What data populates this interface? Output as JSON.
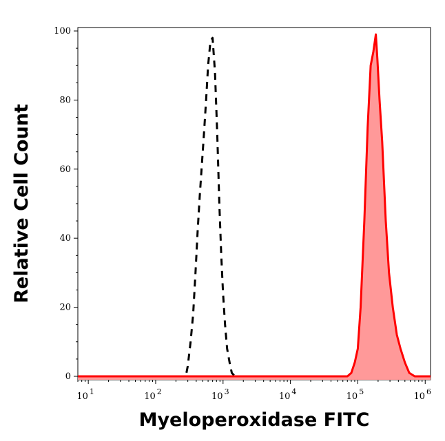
{
  "chart_data": {
    "type": "area",
    "title": "",
    "xlabel": "Myeloperoxidase FITC",
    "ylabel": "Relative Cell Count",
    "x_scale": "log",
    "xlim": [
      7,
      1200000
    ],
    "ylim": [
      -1,
      101
    ],
    "x_ticks": [
      {
        "value": 10,
        "base": "10",
        "exp": "1"
      },
      {
        "value": 100,
        "base": "10",
        "exp": "2"
      },
      {
        "value": 1000,
        "base": "10",
        "exp": "3"
      },
      {
        "value": 10000,
        "base": "10",
        "exp": "4"
      },
      {
        "value": 100000,
        "base": "10",
        "exp": "5"
      },
      {
        "value": 1000000,
        "base": "10",
        "exp": "6"
      }
    ],
    "y_ticks": [
      "0",
      "20",
      "40",
      "60",
      "80",
      "100"
    ],
    "y_minor_step": 5,
    "grid": false,
    "legend": "none",
    "series": [
      {
        "style": "dashed",
        "color": "#000000",
        "fill": "none",
        "points": [
          [
            7,
            0
          ],
          [
            280,
            0
          ],
          [
            300,
            3
          ],
          [
            330,
            10
          ],
          [
            360,
            18
          ],
          [
            390,
            30
          ],
          [
            420,
            42
          ],
          [
            450,
            52
          ],
          [
            480,
            60
          ],
          [
            520,
            70
          ],
          [
            560,
            80
          ],
          [
            600,
            90
          ],
          [
            650,
            97
          ],
          [
            700,
            98
          ],
          [
            760,
            88
          ],
          [
            820,
            70
          ],
          [
            880,
            50
          ],
          [
            940,
            35
          ],
          [
            1000,
            24
          ],
          [
            1070,
            15
          ],
          [
            1150,
            8
          ],
          [
            1250,
            4
          ],
          [
            1350,
            1
          ],
          [
            1500,
            0
          ],
          [
            1200000,
            0
          ]
        ]
      },
      {
        "style": "solid",
        "color": "#ff0000",
        "fill": "#ff9999",
        "points": [
          [
            7,
            0
          ],
          [
            70000,
            0
          ],
          [
            80000,
            1
          ],
          [
            90000,
            4
          ],
          [
            100000,
            8
          ],
          [
            110000,
            20
          ],
          [
            125000,
            45
          ],
          [
            140000,
            72
          ],
          [
            155000,
            90
          ],
          [
            170000,
            94
          ],
          [
            185000,
            99
          ],
          [
            195000,
            92
          ],
          [
            210000,
            80
          ],
          [
            230000,
            68
          ],
          [
            260000,
            45
          ],
          [
            290000,
            30
          ],
          [
            330000,
            20
          ],
          [
            380000,
            12
          ],
          [
            430000,
            8
          ],
          [
            500000,
            4
          ],
          [
            580000,
            1
          ],
          [
            700000,
            0
          ],
          [
            1200000,
            0
          ]
        ]
      }
    ]
  }
}
